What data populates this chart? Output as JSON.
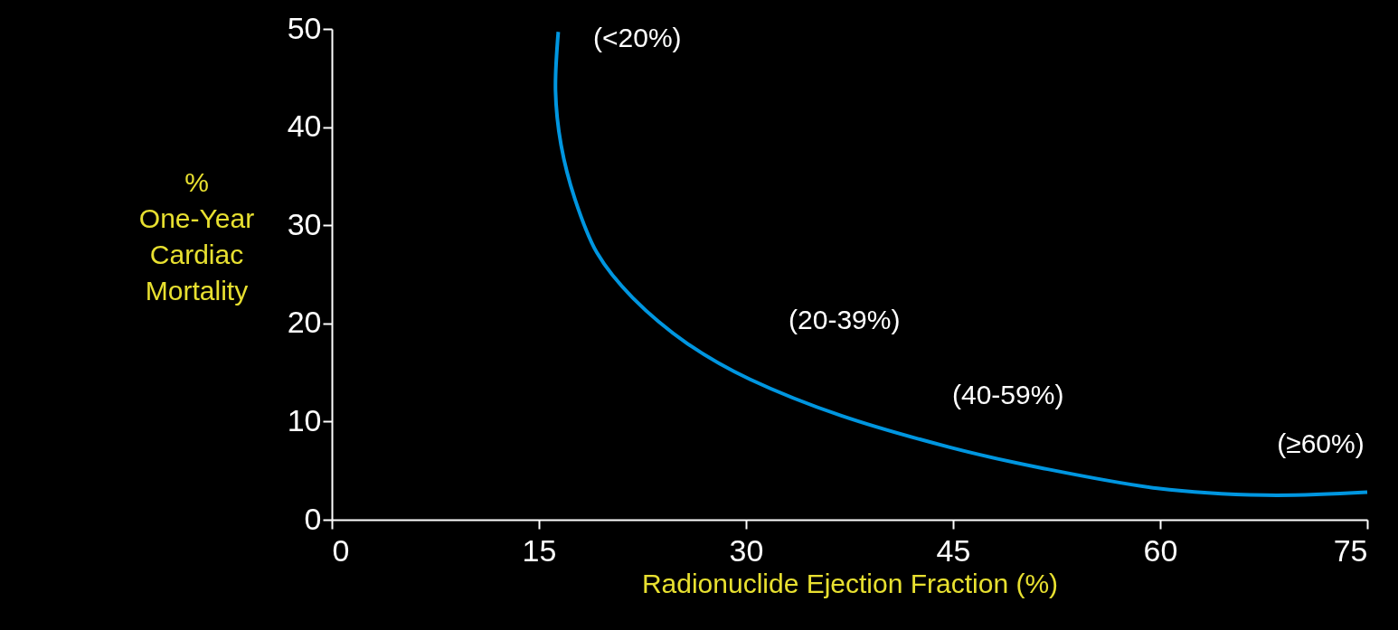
{
  "chart_data": {
    "type": "line",
    "xlabel": "Radionuclide Ejection Fraction (%)",
    "ylabel": "% One-Year Cardiac Mortality",
    "x": [
      16.4,
      16.2,
      16.6,
      17.6,
      19.2,
      21.8,
      25.7,
      30.3,
      36.9,
      44.7,
      51.3,
      59.8,
      67.6,
      75
    ],
    "series": [
      {
        "color": "#0096e0",
        "values": [
          49.7,
          43.7,
          38.2,
          32.7,
          27.2,
          22.6,
          18.0,
          14.3,
          10.6,
          7.4,
          5.3,
          3.2,
          2.5,
          2.8
        ]
      }
    ],
    "xlim": [
      0,
      75
    ],
    "ylim": [
      0,
      50
    ],
    "xticks": [
      0,
      15,
      30,
      45,
      60,
      75
    ],
    "yticks": [
      0,
      10,
      20,
      30,
      40,
      50
    ],
    "grid": false,
    "marker": "none",
    "line_style": "solid",
    "annotations": [
      "(<20%)",
      "(20-39%)",
      "(40-59%)",
      "(≥60%)"
    ]
  }
}
